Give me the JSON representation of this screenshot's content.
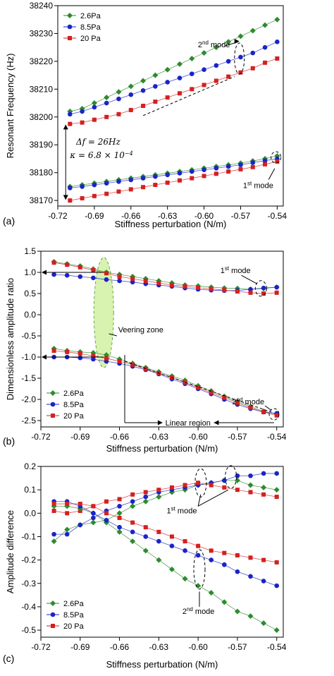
{
  "colors": {
    "2.6Pa": "#2e8b2e",
    "8.5Pa": "#1a24c8",
    "20 Pa": "#d42020",
    "veering": "#d8f2b0"
  },
  "chart_data": [
    {
      "panel_label": "(a)",
      "type": "line",
      "xlabel": "Stiffness perturbation (N/m)",
      "ylabel": "Resonant Frequency (Hz)",
      "xlim": [
        -0.72,
        -0.535
      ],
      "ylim": [
        38168,
        38240
      ],
      "xticks": [
        -0.72,
        -0.69,
        -0.66,
        -0.63,
        -0.6,
        -0.57,
        -0.54
      ],
      "xtick_labels": [
        "-0.72",
        "-0.69",
        "-0.66",
        "-0.63",
        "-0.60",
        "-0.57",
        "-0.54"
      ],
      "yticks": [
        38170,
        38180,
        38190,
        38200,
        38210,
        38220,
        38230,
        38240
      ],
      "ytick_labels": [
        "38170",
        "38180",
        "38190",
        "38200",
        "38210",
        "38220",
        "38230",
        "38240"
      ],
      "legend": {
        "position": "top-left",
        "entries": [
          "2.6Pa",
          "8.5Pa",
          "20 Pa"
        ]
      },
      "series": [
        {
          "name": "2.6Pa",
          "marker": "diamond",
          "x": [
            -0.71,
            -0.7,
            -0.69,
            -0.68,
            -0.67,
            -0.66,
            -0.65,
            -0.64,
            -0.63,
            -0.62,
            -0.61,
            -0.6,
            -0.59,
            -0.58,
            -0.57,
            -0.56,
            -0.55,
            -0.54
          ],
          "y": [
            38202,
            38203,
            38205,
            38207,
            38209,
            38211,
            38213,
            38215,
            38217,
            38219,
            38221,
            38223,
            38225,
            38227,
            38229,
            38231,
            38233,
            38235
          ]
        },
        {
          "name": "8.5Pa",
          "marker": "circle",
          "x": [
            -0.71,
            -0.7,
            -0.69,
            -0.68,
            -0.67,
            -0.66,
            -0.65,
            -0.64,
            -0.63,
            -0.62,
            -0.61,
            -0.6,
            -0.59,
            -0.58,
            -0.57,
            -0.56,
            -0.55,
            -0.54
          ],
          "y": [
            38201,
            38202,
            38203.5,
            38205,
            38206.5,
            38208,
            38209.5,
            38211,
            38212.5,
            38214,
            38215.5,
            38217,
            38218.5,
            38220,
            38221.5,
            38223,
            38225,
            38227
          ]
        },
        {
          "name": "20 Pa",
          "marker": "square",
          "x": [
            -0.71,
            -0.7,
            -0.69,
            -0.68,
            -0.67,
            -0.66,
            -0.65,
            -0.64,
            -0.63,
            -0.62,
            -0.61,
            -0.6,
            -0.59,
            -0.58,
            -0.57,
            -0.56,
            -0.55,
            -0.54
          ],
          "y": [
            38197.5,
            38198,
            38199,
            38200,
            38201,
            38202.5,
            38204,
            38205.5,
            38207,
            38208.5,
            38210,
            38211.5,
            38213,
            38214.5,
            38216,
            38217.5,
            38219.5,
            38221
          ]
        },
        {
          "name": "2.6Pa",
          "marker": "diamond",
          "x": [
            -0.71,
            -0.7,
            -0.69,
            -0.68,
            -0.67,
            -0.66,
            -0.65,
            -0.64,
            -0.63,
            -0.62,
            -0.61,
            -0.6,
            -0.59,
            -0.58,
            -0.57,
            -0.56,
            -0.55,
            -0.54
          ],
          "y": [
            38175,
            38175.6,
            38176.2,
            38176.8,
            38177.4,
            38178,
            38178.6,
            38179.2,
            38179.8,
            38180.4,
            38181,
            38181.6,
            38182.2,
            38182.8,
            38183.4,
            38184.2,
            38185,
            38186
          ]
        },
        {
          "name": "8.5Pa",
          "marker": "circle",
          "x": [
            -0.71,
            -0.7,
            -0.69,
            -0.68,
            -0.67,
            -0.66,
            -0.65,
            -0.64,
            -0.63,
            -0.62,
            -0.61,
            -0.6,
            -0.59,
            -0.58,
            -0.57,
            -0.56,
            -0.55,
            -0.54
          ],
          "y": [
            38174.5,
            38175,
            38175.6,
            38176.2,
            38176.8,
            38177.4,
            38178,
            38178.6,
            38179.2,
            38179.8,
            38180.4,
            38181,
            38181.6,
            38182.2,
            38182.8,
            38183.6,
            38184.3,
            38185
          ]
        },
        {
          "name": "20 Pa",
          "marker": "square",
          "x": [
            -0.71,
            -0.7,
            -0.69,
            -0.68,
            -0.67,
            -0.66,
            -0.65,
            -0.64,
            -0.63,
            -0.62,
            -0.61,
            -0.6,
            -0.59,
            -0.58,
            -0.57,
            -0.56,
            -0.55,
            -0.54
          ],
          "y": [
            38170,
            38170.8,
            38171.6,
            38172.4,
            38173.2,
            38174,
            38174.8,
            38175.6,
            38176.4,
            38177.2,
            38178,
            38178.8,
            38179.6,
            38180.4,
            38181.2,
            38182,
            38183,
            38184
          ]
        }
      ],
      "annotations": {
        "mode2": {
          "text": "2",
          "sup": "nd",
          "rest": " mode"
        },
        "mode1": {
          "text": "1",
          "sup": "st",
          "rest": " mode"
        },
        "delta_f": "Δf = 26Hz",
        "kappa": "κ = 6.8 × 10",
        "kappa_exp": "−4"
      }
    },
    {
      "panel_label": "(b)",
      "type": "line",
      "xlabel": "Stiffness perturbation (N/m)",
      "ylabel": "Dimensionless amplitude ratio",
      "xlim": [
        -0.72,
        -0.535
      ],
      "ylim": [
        -2.65,
        1.5
      ],
      "xticks": [
        -0.72,
        -0.69,
        -0.66,
        -0.63,
        -0.6,
        -0.57,
        -0.54
      ],
      "xtick_labels": [
        "-0.72",
        "-0.69",
        "-0.66",
        "-0.63",
        "-0.60",
        "-0.57",
        "-0.54"
      ],
      "yticks": [
        -2.5,
        -2.0,
        -1.5,
        -1.0,
        -0.5,
        0.0,
        0.5,
        1.0,
        1.5
      ],
      "ytick_labels": [
        "-2.5",
        "-2.0",
        "-1.5",
        "-1.0",
        "-0.5",
        "0.0",
        "0.5",
        "1.0",
        "1.5"
      ],
      "legend": {
        "position": "bottom-left",
        "entries": [
          "2.6Pa",
          "8.5Pa",
          "20 Pa"
        ]
      },
      "series": [
        {
          "name": "2.6Pa",
          "marker": "diamond",
          "x": [
            -0.71,
            -0.7,
            -0.69,
            -0.68,
            -0.67,
            -0.66,
            -0.65,
            -0.64,
            -0.63,
            -0.62,
            -0.61,
            -0.6,
            -0.59,
            -0.58,
            -0.57,
            -0.56,
            -0.55,
            -0.54
          ],
          "y": [
            1.25,
            1.2,
            1.15,
            1.08,
            1.0,
            0.95,
            0.9,
            0.85,
            0.8,
            0.75,
            0.7,
            0.68,
            0.65,
            0.63,
            0.62,
            0.6,
            0.62,
            0.65
          ]
        },
        {
          "name": "8.5Pa",
          "marker": "circle",
          "x": [
            -0.71,
            -0.7,
            -0.69,
            -0.68,
            -0.67,
            -0.66,
            -0.65,
            -0.64,
            -0.63,
            -0.62,
            -0.61,
            -0.6,
            -0.59,
            -0.58,
            -0.57,
            -0.56,
            -0.55,
            -0.54
          ],
          "y": [
            0.95,
            0.93,
            0.9,
            0.87,
            0.83,
            0.8,
            0.77,
            0.73,
            0.7,
            0.67,
            0.63,
            0.6,
            0.58,
            0.57,
            0.57,
            0.6,
            0.63,
            0.65
          ]
        },
        {
          "name": "20 Pa",
          "marker": "square",
          "x": [
            -0.71,
            -0.7,
            -0.69,
            -0.68,
            -0.67,
            -0.66,
            -0.65,
            -0.64,
            -0.63,
            -0.62,
            -0.61,
            -0.6,
            -0.59,
            -0.58,
            -0.57,
            -0.56,
            -0.55,
            -0.54
          ],
          "y": [
            1.23,
            1.18,
            1.12,
            1.05,
            0.98,
            0.9,
            0.85,
            0.8,
            0.75,
            0.7,
            0.67,
            0.64,
            0.61,
            0.58,
            0.55,
            0.52,
            0.5,
            0.52
          ]
        },
        {
          "name": "2.6Pa",
          "marker": "diamond",
          "x": [
            -0.71,
            -0.7,
            -0.69,
            -0.68,
            -0.67,
            -0.66,
            -0.65,
            -0.64,
            -0.63,
            -0.62,
            -0.61,
            -0.6,
            -0.59,
            -0.58,
            -0.57,
            -0.56,
            -0.55,
            -0.54
          ],
          "y": [
            -0.8,
            -0.85,
            -0.88,
            -0.9,
            -0.95,
            -1.05,
            -1.15,
            -1.25,
            -1.35,
            -1.45,
            -1.55,
            -1.68,
            -1.8,
            -1.93,
            -2.05,
            -2.17,
            -2.28,
            -2.35
          ]
        },
        {
          "name": "8.5Pa",
          "marker": "circle",
          "x": [
            -0.71,
            -0.7,
            -0.69,
            -0.68,
            -0.67,
            -0.66,
            -0.65,
            -0.64,
            -0.63,
            -0.62,
            -0.61,
            -0.6,
            -0.59,
            -0.58,
            -0.57,
            -0.56,
            -0.55,
            -0.54
          ],
          "y": [
            -1.0,
            -1.0,
            -1.02,
            -1.05,
            -1.1,
            -1.15,
            -1.22,
            -1.3,
            -1.4,
            -1.52,
            -1.63,
            -1.75,
            -1.87,
            -2.0,
            -2.12,
            -2.22,
            -2.3,
            -2.33
          ]
        },
        {
          "name": "20 Pa",
          "marker": "square",
          "x": [
            -0.71,
            -0.7,
            -0.69,
            -0.68,
            -0.67,
            -0.66,
            -0.65,
            -0.64,
            -0.63,
            -0.62,
            -0.61,
            -0.6,
            -0.59,
            -0.58,
            -0.57,
            -0.56,
            -0.55,
            -0.54
          ],
          "y": [
            -0.85,
            -0.88,
            -0.92,
            -0.97,
            -1.03,
            -1.1,
            -1.18,
            -1.28,
            -1.38,
            -1.48,
            -1.6,
            -1.72,
            -1.84,
            -1.96,
            -2.08,
            -2.2,
            -2.3,
            -2.38
          ]
        }
      ],
      "annotations": {
        "mode1": {
          "text": "1",
          "sup": "st",
          "rest": " mode"
        },
        "mode2": {
          "text": "2",
          "sup": "nd",
          "rest": " mode"
        },
        "veering": "Veering zone",
        "linear": "Linear region"
      }
    },
    {
      "panel_label": "(c)",
      "type": "line",
      "xlabel": "Stiffness perturbation (N/m)",
      "ylabel": "Amplitude difference",
      "xlim": [
        -0.72,
        -0.535
      ],
      "ylim": [
        -0.53,
        0.2
      ],
      "xticks": [
        -0.72,
        -0.69,
        -0.66,
        -0.63,
        -0.6,
        -0.57,
        -0.54
      ],
      "xtick_labels": [
        "-0.72",
        "-0.69",
        "-0.66",
        "-0.63",
        "-0.60",
        "-0.57",
        "-0.54"
      ],
      "yticks": [
        -0.5,
        -0.4,
        -0.3,
        -0.2,
        -0.1,
        0.0,
        0.1,
        0.2
      ],
      "ytick_labels": [
        "-0.5",
        "-0.4",
        "-0.3",
        "-0.2",
        "-0.1",
        "0.0",
        "0.1",
        "0.2"
      ],
      "legend": {
        "position": "bottom-left",
        "entries": [
          "2.6Pa",
          "8.5Pa",
          "20 Pa"
        ]
      },
      "series": [
        {
          "name": "2.6Pa",
          "marker": "diamond",
          "x": [
            -0.71,
            -0.7,
            -0.69,
            -0.68,
            -0.67,
            -0.66,
            -0.65,
            -0.64,
            -0.63,
            -0.62,
            -0.61,
            -0.6,
            -0.59,
            -0.58,
            -0.57,
            -0.56,
            -0.55,
            -0.54
          ],
          "y": [
            -0.12,
            -0.07,
            -0.05,
            -0.04,
            -0.03,
            0.0,
            0.03,
            0.05,
            0.07,
            0.09,
            0.1,
            0.12,
            0.13,
            0.14,
            0.14,
            0.12,
            0.11,
            0.1
          ]
        },
        {
          "name": "8.5Pa",
          "marker": "circle",
          "x": [
            -0.71,
            -0.7,
            -0.69,
            -0.68,
            -0.67,
            -0.66,
            -0.65,
            -0.64,
            -0.63,
            -0.62,
            -0.61,
            -0.6,
            -0.59,
            -0.58,
            -0.57,
            -0.56,
            -0.55,
            -0.54
          ],
          "y": [
            -0.09,
            -0.09,
            -0.05,
            -0.02,
            0.01,
            0.03,
            0.05,
            0.07,
            0.09,
            0.1,
            0.11,
            0.12,
            0.13,
            0.14,
            0.16,
            0.16,
            0.17,
            0.17
          ]
        },
        {
          "name": "20 Pa",
          "marker": "square",
          "x": [
            -0.71,
            -0.7,
            -0.69,
            -0.68,
            -0.67,
            -0.66,
            -0.65,
            -0.64,
            -0.63,
            -0.62,
            -0.61,
            -0.6,
            -0.59,
            -0.58,
            -0.57,
            -0.56,
            -0.55,
            -0.54
          ],
          "y": [
            0.01,
            0.0,
            0.01,
            0.03,
            0.05,
            0.06,
            0.08,
            0.09,
            0.1,
            0.11,
            0.12,
            0.13,
            0.12,
            0.11,
            0.1,
            0.09,
            0.08,
            0.07
          ]
        },
        {
          "name": "2.6Pa",
          "marker": "diamond",
          "x": [
            -0.71,
            -0.7,
            -0.69,
            -0.68,
            -0.67,
            -0.66,
            -0.65,
            -0.64,
            -0.63,
            -0.62,
            -0.61,
            -0.6,
            -0.59,
            -0.58,
            -0.57,
            -0.56,
            -0.55,
            -0.54
          ],
          "y": [
            0.03,
            0.03,
            0.02,
            0.0,
            -0.04,
            -0.08,
            -0.12,
            -0.16,
            -0.2,
            -0.24,
            -0.28,
            -0.31,
            -0.34,
            -0.38,
            -0.42,
            -0.44,
            -0.47,
            -0.5
          ]
        },
        {
          "name": "8.5Pa",
          "marker": "circle",
          "x": [
            -0.71,
            -0.7,
            -0.69,
            -0.68,
            -0.67,
            -0.66,
            -0.65,
            -0.64,
            -0.63,
            -0.62,
            -0.61,
            -0.6,
            -0.59,
            -0.58,
            -0.57,
            -0.56,
            -0.55,
            -0.54
          ],
          "y": [
            0.05,
            0.05,
            0.03,
            0.0,
            -0.03,
            -0.06,
            -0.08,
            -0.1,
            -0.12,
            -0.14,
            -0.16,
            -0.18,
            -0.2,
            -0.22,
            -0.25,
            -0.27,
            -0.29,
            -0.31
          ]
        },
        {
          "name": "20 Pa",
          "marker": "square",
          "x": [
            -0.71,
            -0.7,
            -0.69,
            -0.68,
            -0.67,
            -0.66,
            -0.65,
            -0.64,
            -0.63,
            -0.62,
            -0.61,
            -0.6,
            -0.59,
            -0.58,
            -0.57,
            -0.56,
            -0.55,
            -0.54
          ],
          "y": [
            0.04,
            0.04,
            0.04,
            0.03,
            0.0,
            -0.02,
            -0.04,
            -0.06,
            -0.08,
            -0.1,
            -0.12,
            -0.14,
            -0.16,
            -0.17,
            -0.18,
            -0.19,
            -0.2,
            -0.21
          ]
        }
      ],
      "annotations": {
        "mode1": {
          "text": "1",
          "sup": "st",
          "rest": " mode"
        },
        "mode2": {
          "text": "2",
          "sup": "nd",
          "rest": " mode"
        }
      }
    }
  ]
}
